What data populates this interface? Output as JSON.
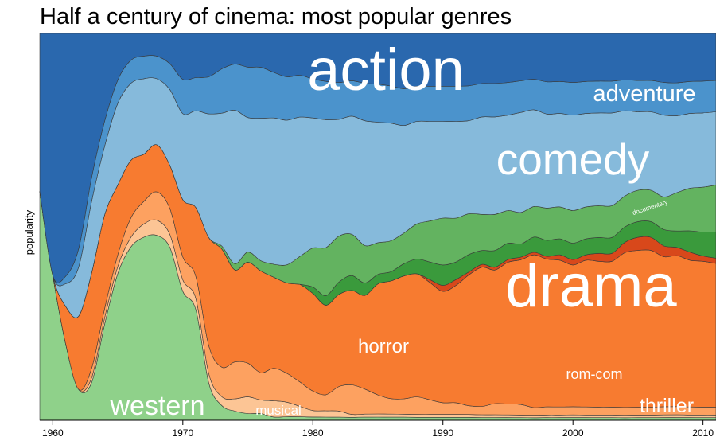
{
  "chart_data": {
    "type": "area",
    "title": "Half a century of cinema: most popular genres",
    "xlabel": "",
    "ylabel": "popularity",
    "x_ticks": [
      1960,
      1970,
      1980,
      1990,
      2000,
      2010
    ],
    "x": [
      1959,
      1960,
      1961,
      1962,
      1963,
      1964,
      1965,
      1966,
      1967,
      1968,
      1969,
      1970,
      1971,
      1972,
      1973,
      1974,
      1975,
      1976,
      1977,
      1978,
      1979,
      1980,
      1981,
      1982,
      1983,
      1984,
      1985,
      1986,
      1987,
      1988,
      1989,
      1990,
      1991,
      1992,
      1993,
      1994,
      1995,
      1996,
      1997,
      1998,
      1999,
      2000,
      2001,
      2002,
      2003,
      2004,
      2005,
      2006,
      2007,
      2008,
      2009,
      2010,
      2011
    ],
    "ylim": [
      0,
      100
    ],
    "series": [
      {
        "name": "western",
        "color": "#8fd18a",
        "values": [
          29,
          18,
          10,
          5,
          8,
          31,
          63,
          90,
          97,
          98,
          80,
          45,
          40,
          12,
          5,
          3,
          2,
          2,
          1,
          1,
          1,
          1,
          1,
          1,
          1,
          1,
          1,
          1,
          1,
          1,
          1,
          1,
          1,
          1,
          1,
          1,
          1,
          1,
          1,
          1,
          1,
          1,
          1,
          1,
          1,
          1,
          1,
          1,
          1,
          1,
          1,
          1,
          1
        ]
      },
      {
        "name": "musical",
        "color": "#fcc595",
        "values": [
          0,
          0,
          0,
          0,
          1,
          2,
          3,
          5,
          7,
          8,
          6,
          4,
          4,
          3,
          3,
          4,
          5,
          4,
          5,
          4,
          3,
          2,
          2,
          2,
          1,
          1,
          1,
          1,
          1,
          1,
          1,
          1,
          1,
          1,
          1,
          1,
          1,
          1,
          1,
          1,
          1,
          1,
          1,
          1,
          1,
          1,
          1,
          1,
          1,
          1,
          1,
          1,
          1
        ]
      },
      {
        "name": "horror",
        "color": "#fda160",
        "values": [
          0,
          0,
          0,
          0,
          2,
          3,
          5,
          10,
          12,
          15,
          12,
          8,
          8,
          9,
          10,
          12,
          10,
          8,
          10,
          8,
          7,
          6,
          5,
          8,
          10,
          8,
          6,
          5,
          5,
          6,
          5,
          4,
          4,
          3,
          3,
          4,
          4,
          4,
          3,
          3,
          3,
          3,
          3,
          3,
          3,
          3,
          3,
          3,
          3,
          3,
          3,
          3,
          3
        ]
      },
      {
        "name": "drama",
        "color": "#f77b30",
        "values": [
          0,
          0,
          5,
          12,
          20,
          30,
          30,
          30,
          25,
          25,
          20,
          20,
          25,
          35,
          40,
          30,
          30,
          30,
          28,
          25,
          28,
          30,
          28,
          30,
          32,
          30,
          35,
          38,
          40,
          42,
          40,
          38,
          40,
          45,
          50,
          48,
          52,
          55,
          60,
          55,
          55,
          52,
          55,
          55,
          55,
          60,
          60,
          60,
          55,
          55,
          55,
          55,
          55
        ]
      },
      {
        "name": "documentary",
        "color": "#d8481b",
        "values": [
          0,
          0,
          0,
          0,
          0,
          0,
          0,
          0,
          0,
          0,
          0,
          0,
          0,
          0,
          0,
          0,
          0,
          0,
          0,
          0,
          0,
          0,
          0,
          0,
          0,
          0,
          0,
          0,
          0,
          0,
          1,
          2,
          2,
          1,
          1,
          1,
          1,
          1,
          1,
          1,
          2,
          2,
          2,
          3,
          3,
          4,
          5,
          5,
          4,
          3,
          3,
          2,
          2
        ]
      },
      {
        "name": "rom-com",
        "color": "#3a9a3c",
        "values": [
          0,
          0,
          0,
          0,
          0,
          0,
          0,
          0,
          0,
          0,
          0,
          0,
          0,
          0,
          0,
          0,
          0,
          0,
          0,
          0,
          0,
          2,
          3,
          4,
          5,
          4,
          3,
          3,
          4,
          5,
          6,
          7,
          6,
          6,
          5,
          6,
          6,
          5,
          6,
          6,
          6,
          6,
          6,
          6,
          6,
          6,
          6,
          6,
          6,
          6,
          8,
          9,
          10
        ]
      },
      {
        "name": "thriller",
        "color": "#63b360",
        "values": [
          0,
          0,
          0,
          0,
          0,
          0,
          0,
          0,
          0,
          0,
          0,
          0,
          0,
          0,
          1,
          2,
          3,
          3,
          4,
          5,
          8,
          12,
          15,
          15,
          14,
          12,
          10,
          10,
          10,
          12,
          14,
          16,
          15,
          14,
          13,
          13,
          12,
          12,
          12,
          12,
          12,
          12,
          12,
          12,
          12,
          12,
          12,
          12,
          12,
          14,
          16,
          17,
          18
        ]
      },
      {
        "name": "comedy",
        "color": "#86badb",
        "values": [
          0,
          0,
          3,
          8,
          15,
          22,
          35,
          40,
          40,
          35,
          35,
          30,
          35,
          40,
          45,
          50,
          40,
          42,
          45,
          40,
          40,
          40,
          40,
          38,
          40,
          40,
          38,
          38,
          35,
          35,
          34,
          33,
          33,
          32,
          35,
          35,
          35,
          38,
          38,
          35,
          35,
          35,
          35,
          35,
          35,
          33,
          30,
          30,
          30,
          28,
          28,
          28,
          28
        ]
      },
      {
        "name": "adventure",
        "color": "#4b93cc",
        "values": [
          0,
          0,
          1,
          3,
          5,
          8,
          10,
          12,
          12,
          12,
          12,
          12,
          12,
          12,
          15,
          15,
          15,
          15,
          14,
          12,
          12,
          12,
          12,
          12,
          12,
          12,
          12,
          12,
          12,
          12,
          12,
          12,
          12,
          12,
          12,
          12,
          12,
          12,
          12,
          12,
          12,
          12,
          12,
          12,
          12,
          12,
          12,
          12,
          12,
          12,
          12,
          12,
          12
        ]
      },
      {
        "name": "action",
        "color": "#2a68ae",
        "values": [
          20,
          30,
          32,
          35,
          30,
          28,
          20,
          14,
          12,
          12,
          14,
          16,
          16,
          14,
          12,
          10,
          10,
          10,
          12,
          12,
          12,
          14,
          15,
          16,
          16,
          16,
          16,
          17,
          18,
          18,
          18,
          18,
          18,
          18,
          18,
          18,
          18,
          18,
          18,
          18,
          18,
          18,
          18,
          18,
          18,
          18,
          18,
          18,
          18,
          18,
          18,
          18,
          18
        ]
      }
    ]
  }
}
